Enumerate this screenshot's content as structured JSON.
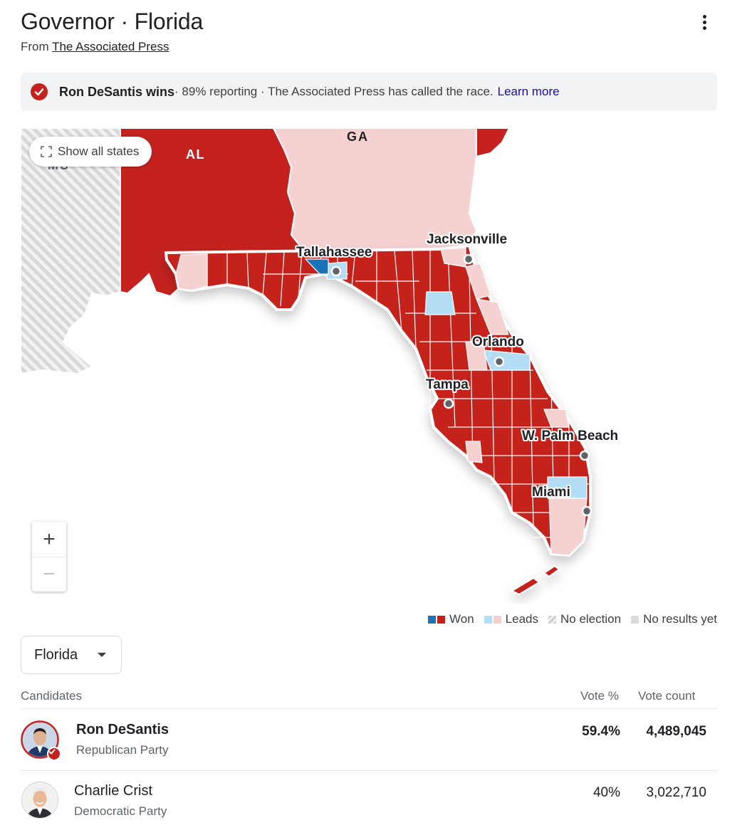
{
  "header": {
    "title": "Governor · Florida",
    "source_prefix": "From",
    "source_link": "The Associated Press"
  },
  "banner": {
    "winner": "Ron DeSantis wins",
    "status": " · 89% reporting · The Associated Press has called the race.",
    "learn_more": "Learn more"
  },
  "map": {
    "show_all_states": "Show all states",
    "state_labels": [
      "AL",
      "GA",
      "MS"
    ],
    "cities": [
      "Tallahassee",
      "Jacksonville",
      "Orlando",
      "Tampa",
      "W. Palm Beach",
      "Miami"
    ],
    "zoom_in": "+",
    "zoom_out": "−"
  },
  "legend": {
    "won": "Won",
    "leads": "Leads",
    "no_election": "No election",
    "no_results": "No results yet"
  },
  "colors": {
    "rep_won": "#c5221f",
    "dem_won": "#1a73b8",
    "rep_lead": "#f6d1d1",
    "dem_lead": "#b3dcf5",
    "no_election": "#dcdcdc",
    "no_results": "#dadce0"
  },
  "selector": {
    "value": "Florida"
  },
  "table": {
    "headers": {
      "candidates": "Candidates",
      "vote_pct": "Vote %",
      "vote_count": "Vote count"
    },
    "rows": [
      {
        "name": "Ron DeSantis",
        "party": "Republican Party",
        "pct": "59.4%",
        "count": "4,489,045",
        "winner": true
      },
      {
        "name": "Charlie Crist",
        "party": "Democratic Party",
        "pct": "40%",
        "count": "3,022,710",
        "winner": false
      }
    ]
  }
}
